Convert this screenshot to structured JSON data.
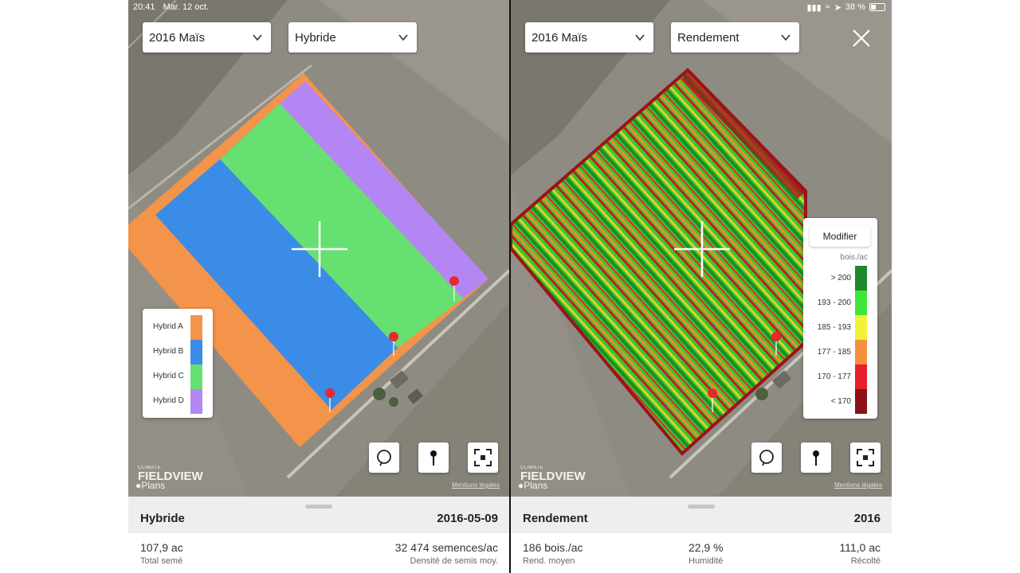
{
  "status": {
    "time": "20:41",
    "date": "Mar. 12 oct.",
    "battery": "38 %"
  },
  "left": {
    "season_dropdown": "2016 Maïs",
    "layer_dropdown": "Hybride",
    "legend": [
      {
        "label": "Hybrid A",
        "color": "#f4934a"
      },
      {
        "label": "Hybrid B",
        "color": "#3a8ce6"
      },
      {
        "label": "Hybrid C",
        "color": "#66e070"
      },
      {
        "label": "Hybrid D",
        "color": "#b486f4"
      }
    ],
    "brand": {
      "top": "CLIMATE",
      "name": "FIELDVIEW"
    },
    "maps_label": "Plans",
    "legal": "Mentions légales",
    "sheet": {
      "title": "Hybride",
      "date": "2016-05-09",
      "stat1_value": "107,9 ac",
      "stat1_label": "Total semé",
      "stat2_value": "32 474 semences/ac",
      "stat2_label": "Densité de semis moy."
    }
  },
  "right": {
    "season_dropdown": "2016 Maïs",
    "layer_dropdown": "Rendement",
    "modifier_label": "Modifier",
    "unit": "bois./ac",
    "legend": [
      {
        "label": "> 200",
        "color": "#1e8a2a"
      },
      {
        "label": "193 - 200",
        "color": "#3ee63a"
      },
      {
        "label": "185 - 193",
        "color": "#f2f23a"
      },
      {
        "label": "177 - 185",
        "color": "#f4913a"
      },
      {
        "label": "170 - 177",
        "color": "#e8202a"
      },
      {
        "label": "< 170",
        "color": "#8b1118"
      }
    ],
    "brand": {
      "top": "CLIMATE",
      "name": "FIELDVIEW"
    },
    "maps_label": "Plans",
    "legal": "Mentions légales",
    "sheet": {
      "title": "Rendement",
      "year": "2016",
      "stat1_value": "186 bois./ac",
      "stat1_label": "Rend. moyen",
      "stat2_value": "22,9 %",
      "stat2_label": "Humidité",
      "stat3_value": "111,0 ac",
      "stat3_label": "Récolté"
    }
  },
  "icons": [
    "chevron-down-icon",
    "close-icon",
    "lasso-icon",
    "pin-icon",
    "fit-extent-icon",
    "crosshair-icon",
    "map-marker-icon",
    "wifi-icon",
    "location-arrow-icon",
    "battery-icon",
    "apple-icon"
  ]
}
